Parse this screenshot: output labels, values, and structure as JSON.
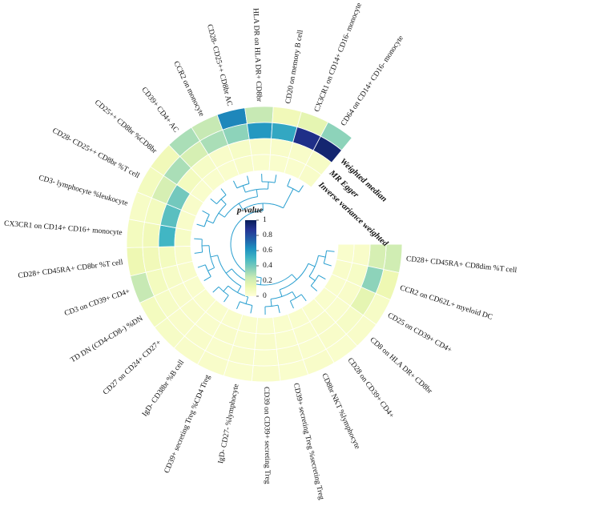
{
  "chart_data": {
    "type": "circular_heatmap",
    "categories": [
      "CD28+ CD45RA+ CD8dim %T cell",
      "CCR2 on CD62L+ myeloid DC",
      "CD25 on CD39+ CD4+",
      "CD8 on HLA DR+ CD8br",
      "CD28 on CD39+ CD4+",
      "CD8br NKT %lymphocyte",
      "CD39+ secreting Treg %secreting Treg",
      "CD39 on CD39+ secreting Treg",
      "IgD- CD27- %lymphocyte",
      "CD39+ secreting Treg %CD4 Treg",
      "IgD- CD38br %B cell",
      "CD27 on CD24+ CD27+",
      "TD DN (CD4-CD8-) %DN",
      "CD3 on CD39+ CD4+",
      "CD28+ CD45RA+ CD8br %T cell",
      "CX3CR1 on CD14+ CD16+ monocyte",
      "CD3- lymphocyte %leukocyte",
      "CD28- CD25++ CD8br %T cell",
      "CD25++ CD8br %CD8br",
      "CD39+ CD4+ AC",
      "CCR2 on monocyte",
      "CD28- CD25++ CD8br AC",
      "HLA DR on HLA DR+ CD8br",
      "CD20 on memory B cell",
      "CX3CR1 on CD14+ CD16- monocyte",
      "CD64 on CD14+ CD16- monocyte"
    ],
    "series": [
      {
        "name": null,
        "values": [
          0.22,
          0.12,
          0.06,
          0.05,
          0.04,
          0.05,
          0.04,
          0.05,
          0.04,
          0.05,
          0.05,
          0.06,
          0.08,
          0.25,
          0.12,
          0.08,
          0.06,
          0.08,
          0.1,
          0.3,
          0.25,
          0.65,
          0.25,
          0.1,
          0.15,
          0.35
        ]
      },
      {
        "name": "Weighted median",
        "values": [
          0.2,
          0.35,
          0.15,
          0.06,
          0.05,
          0.04,
          0.05,
          0.04,
          0.05,
          0.04,
          0.05,
          0.05,
          0.06,
          0.08,
          0.1,
          0.1,
          0.08,
          0.2,
          0.3,
          0.2,
          0.3,
          0.35,
          0.6,
          0.55,
          0.9,
          0.95
        ]
      },
      {
        "name": "MR Egger",
        "values": [
          0.05,
          0.06,
          0.05,
          0.04,
          0.05,
          0.04,
          0.04,
          0.05,
          0.04,
          0.05,
          0.04,
          0.05,
          0.05,
          0.06,
          0.08,
          0.5,
          0.45,
          0.4,
          0.08,
          0.06,
          0.05,
          0.06,
          0.05,
          0.05,
          0.05,
          0.06
        ]
      },
      {
        "name": "Inverse variance weighted",
        "values": [
          0.04,
          0.05,
          0.04,
          0.04,
          0.04,
          0.04,
          0.04,
          0.04,
          0.04,
          0.04,
          0.04,
          0.04,
          0.04,
          0.05,
          0.05,
          0.06,
          0.05,
          0.05,
          0.04,
          0.04,
          0.04,
          0.05,
          0.04,
          0.04,
          0.04,
          0.05
        ]
      }
    ],
    "colors": [
      "#ffffd9",
      "#edf8b1",
      "#c7e9b4",
      "#7fcdbb",
      "#41b6c4",
      "#1d91c0",
      "#225ea8",
      "#253494",
      "#081d58"
    ],
    "zlim": [
      0,
      1
    ],
    "legend": {
      "title": "p-value",
      "ticks": [
        0,
        0.2,
        0.4,
        0.6,
        0.8,
        1
      ]
    }
  }
}
